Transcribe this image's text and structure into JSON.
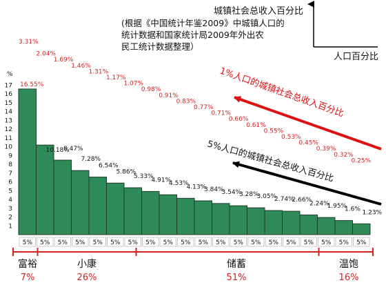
{
  "colors": {
    "bar_fill": "#2e8b57",
    "bar_stroke": "#1f3b2a",
    "top_labels": "#d42020",
    "bar_labels": "#111111",
    "group_lines": "#d42020",
    "group_percent": "#d42020",
    "arrow_red": "#dd1111",
    "arrow_black": "#000000"
  },
  "axis_note": {
    "y_title": "城镇社会总收入百分比",
    "x_title": "人口百分比",
    "note_lines": [
      "(根据《中国统计年鉴2009》中城镇人口的",
      "统计数据和国家统计局2009年外出农",
      "民工统计数据整理）"
    ]
  },
  "arrows": {
    "red_text": "1%人口的城镇社会总收入百分比",
    "black_text": "5%人口的城镇社会总收入百分比"
  },
  "groups": [
    {
      "name": "富裕",
      "percent": "7%",
      "from": 0,
      "to": 1
    },
    {
      "name": "小康",
      "percent": "26%",
      "from": 1,
      "to": 7
    },
    {
      "name": "储蓄",
      "percent": "51%",
      "from": 7,
      "to": 17
    },
    {
      "name": "温饱",
      "percent": "16%",
      "from": 17,
      "to": 20
    }
  ],
  "chart_data": {
    "type": "bar",
    "title": "",
    "xlabel": "人口百分比",
    "ylabel": "城镇社会总收入百分比",
    "y_unit_label": "%",
    "ylim": [
      0,
      17.5
    ],
    "yticks": [
      1,
      2,
      3,
      4,
      5,
      6,
      7,
      8,
      9,
      10,
      11,
      12,
      13,
      14,
      15,
      16,
      17
    ],
    "categories": [
      "5%",
      "5%",
      "5%",
      "5%",
      "5%",
      "5%",
      "5%",
      "5%",
      "5%",
      "5%",
      "5%",
      "5%",
      "5%",
      "5%",
      "5%",
      "5%",
      "5%",
      "5%",
      "5%",
      "5%"
    ],
    "values": [
      16.55,
      10.18,
      8.47,
      7.28,
      6.54,
      5.86,
      5.33,
      4.91,
      4.53,
      4.13,
      3.84,
      3.54,
      3.28,
      3.05,
      2.74,
      2.66,
      2.24,
      1.95,
      1.6,
      1.23
    ],
    "value_labels": [
      "16.55%",
      "10.18%",
      "8.47%",
      "7.28%",
      "6.54%",
      "5.86%",
      "5.33%",
      "4.91%",
      "4.53%",
      "4.13%",
      "3.84%",
      "3.54%",
      "3.28%",
      "3.05%",
      "2.74%",
      "2.66%",
      "2.24%",
      "1.95%",
      "1.6%",
      "1.23%"
    ],
    "one_percent_series": {
      "name": "1%人口的城镇社会总收入百分比",
      "values": [
        3.31,
        2.04,
        1.69,
        1.46,
        1.31,
        1.17,
        1.07,
        0.98,
        0.91,
        0.83,
        0.77,
        0.71,
        0.66,
        0.61,
        0.55,
        0.53,
        0.45,
        0.39,
        0.32,
        0.25
      ],
      "labels": [
        "3.31%",
        "2.04%",
        "1.69%",
        "1.46%",
        "1.31%",
        "1.17%",
        "1.07%",
        "0.98%",
        "0.91%",
        "0.83%",
        "0.77%",
        "0.71%",
        "0.66%",
        "0.61%",
        "0.55%",
        "0.53%",
        "0.45%",
        "0.39%",
        "0.32%",
        "0.25%"
      ]
    },
    "grid": false,
    "legend": "none"
  }
}
